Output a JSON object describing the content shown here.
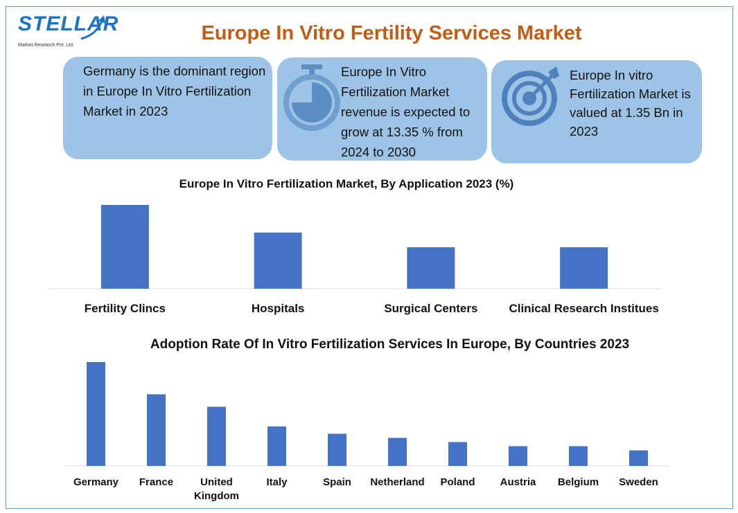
{
  "logo": {
    "name": "STELLAR",
    "tagline": "Market Research Pvt. Ltd."
  },
  "title": "Europe In Vitro Fertility Services Market",
  "cards": [
    {
      "text": "Germany is the dominant region in Europe In Vitro Fertilization Market in 2023"
    },
    {
      "icon": "stopwatch-icon",
      "text": "Europe In Vitro Fertilization Market revenue is expected to grow at 13.35 % from 2024 to 2030"
    },
    {
      "icon": "target-icon",
      "text": "Europe In vitro Fertilization Market is valued at 1.35 Bn in 2023"
    }
  ],
  "colors": {
    "title": "#c55a11",
    "card": "#9dc3e6",
    "bar": "#4472c4",
    "border": "#5b9bd5"
  },
  "chart_data": [
    {
      "type": "bar",
      "title": "Europe In Vitro Fertilization Market, By Application 2023 (%)",
      "categories": [
        "Fertility Clincs",
        "Hospitals",
        "Surgical Centers",
        "Clinical Research Institues"
      ],
      "values": [
        37.6,
        25.2,
        18.6,
        18.6
      ],
      "grid": false,
      "ylim": [
        0,
        37.6
      ]
    },
    {
      "type": "bar",
      "title": "Adoption Rate Of In Vitro Fertilization Services In Europe, By Countries 2023",
      "categories": [
        "Germany",
        "France",
        "United Kingdom",
        "Italy",
        "Spain",
        "Netherland",
        "Poland",
        "Austria",
        "Belgium",
        "Sweden"
      ],
      "values": [
        100,
        69,
        57,
        38,
        31,
        27,
        23,
        19,
        19,
        15
      ],
      "grid": false,
      "ylim": [
        0,
        100
      ]
    }
  ]
}
